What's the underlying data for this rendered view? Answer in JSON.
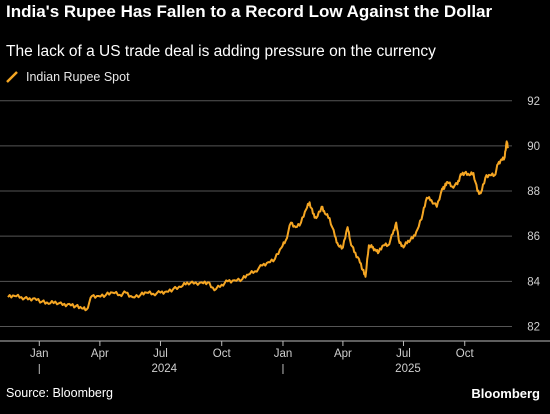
{
  "header": {
    "title": "India's Rupee Has Fallen to a Record Low Against the Dollar",
    "subtitle": "The lack of a US trade deal is adding pressure on the currency"
  },
  "footer": {
    "source": "Source: Bloomberg",
    "brand": "Bloomberg"
  },
  "colors": {
    "background": "#000000",
    "line": "#f5a623",
    "grid": "#555555",
    "text": "#ffffff"
  },
  "chart_data": {
    "type": "line",
    "title": "India's Rupee Has Fallen to a Record Low Against the Dollar",
    "subtitle": "The lack of a US trade deal is adding pressure on the currency",
    "legend": [
      "Indian Rupee Spot"
    ],
    "legend_position": "top-left",
    "y_axis_side": "right",
    "ylim": [
      81.4,
      92.3
    ],
    "yticks": [
      82,
      84,
      86,
      88,
      90,
      92
    ],
    "grid": true,
    "x_ticks": [
      {
        "date": "2024-01-01",
        "label": "Jan"
      },
      {
        "date": "2024-04-01",
        "label": "Apr"
      },
      {
        "date": "2024-07-01",
        "label": "Jul"
      },
      {
        "date": "2024-10-01",
        "label": "Oct"
      },
      {
        "date": "2025-01-01",
        "label": "Jan"
      },
      {
        "date": "2025-04-01",
        "label": "Apr"
      },
      {
        "date": "2025-07-01",
        "label": "Jul"
      },
      {
        "date": "2025-10-01",
        "label": "Oct"
      }
    ],
    "year_labels": [
      {
        "label": "2024",
        "from": "2024-01-01",
        "to": "2025-01-01"
      },
      {
        "label": "2025",
        "from": "2025-01-01",
        "to": "2026-01-01"
      }
    ],
    "x_range": [
      "2023-11-15",
      "2025-12-20"
    ],
    "series": [
      {
        "name": "Indian Rupee Spot",
        "points": [
          [
            "2023-11-15",
            83.3
          ],
          [
            "2023-11-25",
            83.35
          ],
          [
            "2023-12-05",
            83.3
          ],
          [
            "2023-12-15",
            83.2
          ],
          [
            "2023-12-25",
            83.25
          ],
          [
            "2024-01-05",
            83.1
          ],
          [
            "2024-01-15",
            83.0
          ],
          [
            "2024-01-25",
            83.1
          ],
          [
            "2024-02-05",
            82.95
          ],
          [
            "2024-02-15",
            83.0
          ],
          [
            "2024-02-25",
            82.9
          ],
          [
            "2024-03-05",
            82.8
          ],
          [
            "2024-03-12",
            82.75
          ],
          [
            "2024-03-20",
            83.35
          ],
          [
            "2024-03-30",
            83.35
          ],
          [
            "2024-04-10",
            83.4
          ],
          [
            "2024-04-20",
            83.5
          ],
          [
            "2024-05-01",
            83.4
          ],
          [
            "2024-05-10",
            83.5
          ],
          [
            "2024-05-20",
            83.3
          ],
          [
            "2024-06-01",
            83.4
          ],
          [
            "2024-06-10",
            83.5
          ],
          [
            "2024-06-20",
            83.45
          ],
          [
            "2024-07-01",
            83.5
          ],
          [
            "2024-07-10",
            83.55
          ],
          [
            "2024-07-20",
            83.65
          ],
          [
            "2024-08-01",
            83.75
          ],
          [
            "2024-08-10",
            83.95
          ],
          [
            "2024-08-20",
            83.9
          ],
          [
            "2024-09-01",
            83.95
          ],
          [
            "2024-09-10",
            83.95
          ],
          [
            "2024-09-20",
            83.6
          ],
          [
            "2024-10-01",
            83.85
          ],
          [
            "2024-10-10",
            84.0
          ],
          [
            "2024-10-20",
            84.05
          ],
          [
            "2024-11-01",
            84.1
          ],
          [
            "2024-11-10",
            84.3
          ],
          [
            "2024-11-20",
            84.45
          ],
          [
            "2024-12-01",
            84.7
          ],
          [
            "2024-12-10",
            84.85
          ],
          [
            "2024-12-20",
            85.0
          ],
          [
            "2024-12-30",
            85.5
          ],
          [
            "2025-01-05",
            85.8
          ],
          [
            "2025-01-13",
            86.6
          ],
          [
            "2025-01-20",
            86.4
          ],
          [
            "2025-01-28",
            86.6
          ],
          [
            "2025-02-05",
            87.2
          ],
          [
            "2025-02-10",
            87.5
          ],
          [
            "2025-02-15",
            87.0
          ],
          [
            "2025-02-20",
            86.8
          ],
          [
            "2025-02-28",
            87.3
          ],
          [
            "2025-03-05",
            87.0
          ],
          [
            "2025-03-12",
            86.8
          ],
          [
            "2025-03-20",
            86.0
          ],
          [
            "2025-03-25",
            85.6
          ],
          [
            "2025-04-01",
            85.5
          ],
          [
            "2025-04-08",
            86.4
          ],
          [
            "2025-04-12",
            85.8
          ],
          [
            "2025-04-18",
            85.3
          ],
          [
            "2025-04-25",
            85.0
          ],
          [
            "2025-05-01",
            84.5
          ],
          [
            "2025-05-05",
            84.2
          ],
          [
            "2025-05-10",
            85.6
          ],
          [
            "2025-05-15",
            85.5
          ],
          [
            "2025-05-20",
            85.4
          ],
          [
            "2025-05-25",
            85.3
          ],
          [
            "2025-06-01",
            85.6
          ],
          [
            "2025-06-08",
            85.6
          ],
          [
            "2025-06-15",
            86.1
          ],
          [
            "2025-06-20",
            86.6
          ],
          [
            "2025-06-25",
            85.7
          ],
          [
            "2025-07-01",
            85.5
          ],
          [
            "2025-07-08",
            85.8
          ],
          [
            "2025-07-15",
            85.9
          ],
          [
            "2025-07-22",
            86.3
          ],
          [
            "2025-07-30",
            87.0
          ],
          [
            "2025-08-05",
            87.7
          ],
          [
            "2025-08-12",
            87.6
          ],
          [
            "2025-08-20",
            87.3
          ],
          [
            "2025-08-28",
            88.1
          ],
          [
            "2025-09-01",
            88.2
          ],
          [
            "2025-09-05",
            88.4
          ],
          [
            "2025-09-12",
            88.2
          ],
          [
            "2025-09-20",
            88.3
          ],
          [
            "2025-09-25",
            88.75
          ],
          [
            "2025-10-01",
            88.8
          ],
          [
            "2025-10-08",
            88.7
          ],
          [
            "2025-10-14",
            88.8
          ],
          [
            "2025-10-20",
            88.0
          ],
          [
            "2025-10-25",
            87.9
          ],
          [
            "2025-11-01",
            88.6
          ],
          [
            "2025-11-08",
            88.7
          ],
          [
            "2025-11-15",
            88.7
          ],
          [
            "2025-11-20",
            89.2
          ],
          [
            "2025-11-25",
            89.4
          ],
          [
            "2025-11-30",
            89.5
          ],
          [
            "2025-12-03",
            90.2
          ],
          [
            "2025-12-05",
            89.9
          ]
        ]
      }
    ]
  }
}
